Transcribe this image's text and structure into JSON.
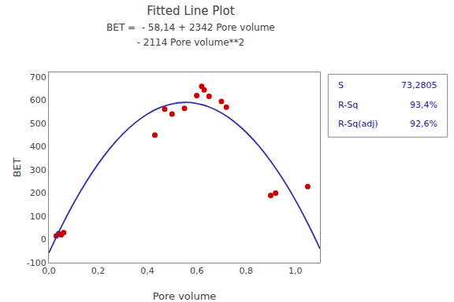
{
  "chart_data": {
    "type": "scatter",
    "title": "Fitted Line Plot",
    "subtitle": [
      "BET =  - 58,14 + 2342 Pore volume",
      "- 2114 Pore volume**2"
    ],
    "xlabel": "Pore volume",
    "ylabel": "BET",
    "series": [
      {
        "type": "scatter",
        "marker": "circle",
        "color": "#cc0000",
        "x": [
          0.03,
          0.04,
          0.05,
          0.06,
          0.43,
          0.47,
          0.5,
          0.55,
          0.6,
          0.62,
          0.63,
          0.65,
          0.7,
          0.72,
          0.9,
          0.92,
          1.05
        ],
        "values": [
          15,
          25,
          20,
          30,
          450,
          562,
          540,
          565,
          620,
          660,
          645,
          617,
          595,
          570,
          190,
          200,
          228
        ]
      },
      {
        "type": "line",
        "line_style": "solid",
        "color": "#3333aa",
        "x": [
          0.0,
          0.05,
          0.1,
          0.15,
          0.2,
          0.25,
          0.3,
          0.35,
          0.4,
          0.45,
          0.5,
          0.55,
          0.6,
          0.65,
          0.7,
          0.75,
          0.8,
          0.85,
          0.9,
          0.95,
          1.0,
          1.05,
          1.1
        ],
        "values": [
          -58.14,
          53.675,
          154.92,
          245.595,
          325.7,
          395.235,
          454.2,
          502.595,
          540.42,
          567.675,
          584.36,
          590.475,
          586.02,
          570.995,
          545.4,
          509.235,
          462.5,
          405.195,
          337.32,
          258.875,
          169.86,
          70.275,
          -39.88
        ]
      }
    ],
    "xlim": [
      0.0,
      1.1
    ],
    "ylim": [
      -100,
      720
    ],
    "xticks": [
      {
        "value": 0.0,
        "label": "0,0"
      },
      {
        "value": 0.2,
        "label": "0,2"
      },
      {
        "value": 0.4,
        "label": "0,4"
      },
      {
        "value": 0.6,
        "label": "0,6"
      },
      {
        "value": 0.8,
        "label": "0,8"
      },
      {
        "value": 1.0,
        "label": "1,0"
      }
    ],
    "yticks": [
      -100,
      0,
      100,
      200,
      300,
      400,
      500,
      600,
      700
    ],
    "grid": false,
    "annotations": [
      {
        "label": "S",
        "text": "73,2805"
      },
      {
        "label": "R-Sq",
        "text": "93,4%"
      },
      {
        "label": "R-Sq(adj)",
        "text": "92,6%"
      }
    ]
  }
}
